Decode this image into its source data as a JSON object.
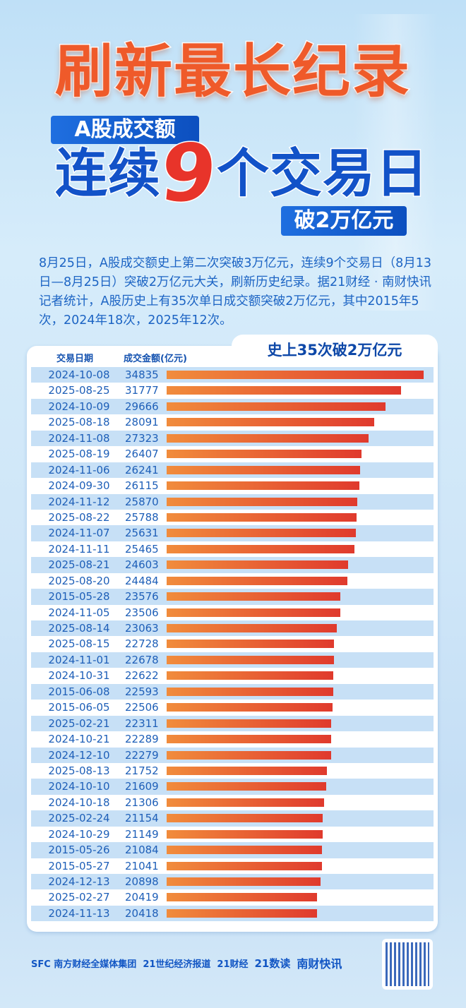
{
  "header": {
    "title": "刷新最长纪录",
    "banner1": "A股成交额",
    "line2_pre": "连续",
    "line2_num": "9",
    "line2_post": "个交易日",
    "banner2": "破2万亿元"
  },
  "intro": "8月25日，A股成交额史上第二次突破3万亿元，连续9个交易日（8月13日—8月25日）突破2万亿元大关，刷新历史纪录。据21财经 · 南财快讯记者统计，A股历史上有35次单日成交额突破2万亿元，其中2015年5次，2024年18次，2025年12次。",
  "chart_data": {
    "type": "bar",
    "title": "史上35次破2万亿元",
    "columns": [
      "交易日期",
      "成交金额(亿元)"
    ],
    "categories": [
      "2024-10-08",
      "2025-08-25",
      "2024-10-09",
      "2025-08-18",
      "2024-11-08",
      "2025-08-19",
      "2024-11-06",
      "2024-09-30",
      "2024-11-12",
      "2025-08-22",
      "2024-11-07",
      "2024-11-11",
      "2025-08-21",
      "2025-08-20",
      "2015-05-28",
      "2024-11-05",
      "2025-08-14",
      "2025-08-15",
      "2024-11-01",
      "2024-10-31",
      "2015-06-08",
      "2015-06-05",
      "2025-02-21",
      "2024-10-21",
      "2024-12-10",
      "2025-08-13",
      "2024-10-10",
      "2024-10-18",
      "2025-02-24",
      "2024-10-29",
      "2015-05-26",
      "2015-05-27",
      "2024-12-13",
      "2025-02-27",
      "2024-11-13"
    ],
    "values": [
      34835,
      31777,
      29666,
      28091,
      27323,
      26407,
      26241,
      26115,
      25870,
      25788,
      25631,
      25465,
      24603,
      24484,
      23576,
      23506,
      23063,
      22728,
      22678,
      22622,
      22593,
      22506,
      22311,
      22289,
      22279,
      21752,
      21609,
      21306,
      21154,
      21149,
      21084,
      21041,
      20898,
      20419,
      20418
    ],
    "orientation": "horizontal",
    "bar_color": [
      "#f18c3c",
      "#e03a2d"
    ]
  },
  "footer": {
    "brands": [
      "SFC 南方财经全媒体集团",
      "21世纪经济报道",
      "21财经",
      "21数读",
      "南财快讯"
    ]
  }
}
